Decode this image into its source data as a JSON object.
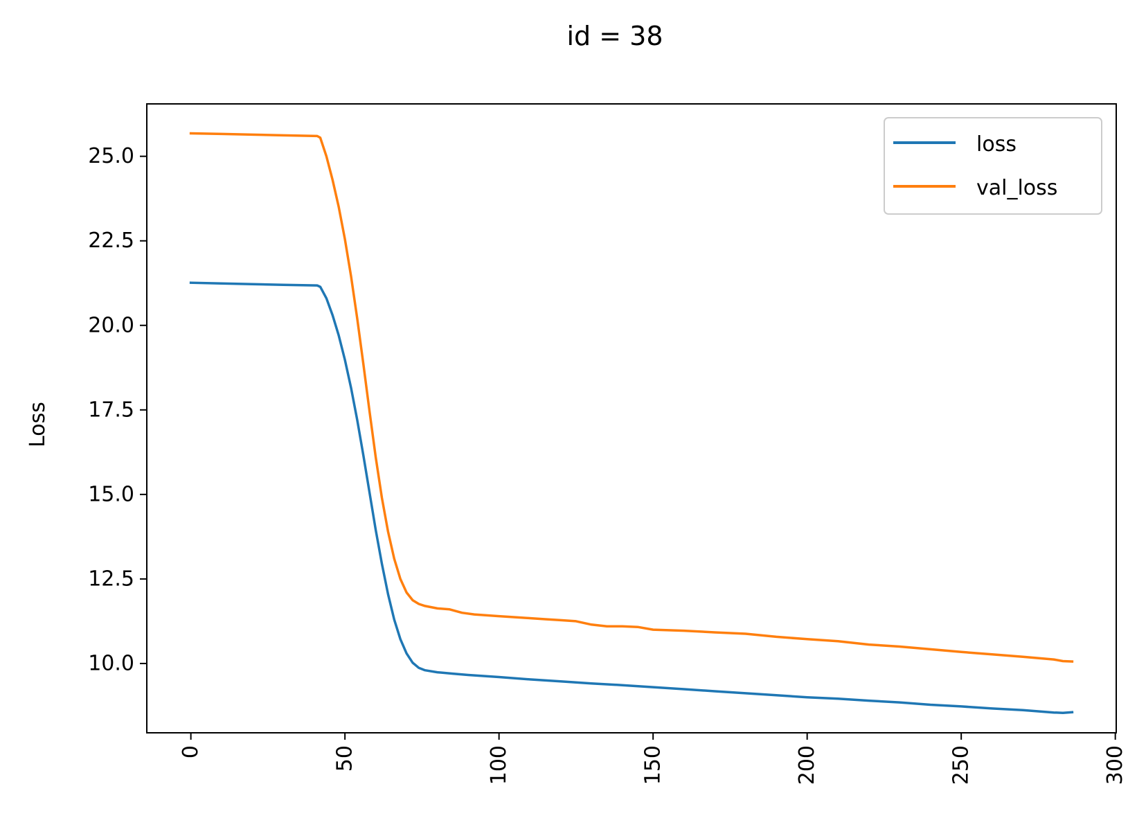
{
  "chart_data": {
    "type": "line",
    "title": "id = 38",
    "xlabel": "",
    "ylabel": "Loss",
    "xlim": [
      -14.3,
      300.3
    ],
    "ylim": [
      7.95,
      26.55
    ],
    "xticks": [
      0,
      50,
      100,
      150,
      200,
      250,
      300
    ],
    "xtick_labels": [
      "0",
      "50",
      "100",
      "150",
      "200",
      "250",
      "300"
    ],
    "yticks": [
      10.0,
      12.5,
      15.0,
      17.5,
      20.0,
      22.5,
      25.0
    ],
    "ytick_labels": [
      "10.0",
      "12.5",
      "15.0",
      "17.5",
      "20.0",
      "22.5",
      "25.0"
    ],
    "grid": false,
    "legend": "top-right",
    "series": [
      {
        "name": "loss",
        "color": "#1f77b4",
        "points": [
          [
            0,
            21.26
          ],
          [
            10,
            21.24
          ],
          [
            20,
            21.22
          ],
          [
            30,
            21.2
          ],
          [
            41,
            21.18
          ],
          [
            42,
            21.14
          ],
          [
            44,
            20.8
          ],
          [
            46,
            20.3
          ],
          [
            48,
            19.7
          ],
          [
            50,
            18.98
          ],
          [
            52,
            18.15
          ],
          [
            54,
            17.2
          ],
          [
            56,
            16.15
          ],
          [
            58,
            15.05
          ],
          [
            60,
            13.95
          ],
          [
            62,
            12.95
          ],
          [
            64,
            12.05
          ],
          [
            66,
            11.3
          ],
          [
            68,
            10.72
          ],
          [
            70,
            10.3
          ],
          [
            72,
            10.02
          ],
          [
            74,
            9.87
          ],
          [
            76,
            9.8
          ],
          [
            80,
            9.74
          ],
          [
            85,
            9.7
          ],
          [
            90,
            9.66
          ],
          [
            100,
            9.6
          ],
          [
            110,
            9.53
          ],
          [
            120,
            9.47
          ],
          [
            130,
            9.41
          ],
          [
            140,
            9.36
          ],
          [
            150,
            9.3
          ],
          [
            160,
            9.24
          ],
          [
            170,
            9.18
          ],
          [
            180,
            9.12
          ],
          [
            190,
            9.06
          ],
          [
            200,
            9.0
          ],
          [
            210,
            8.96
          ],
          [
            220,
            8.9
          ],
          [
            230,
            8.85
          ],
          [
            240,
            8.78
          ],
          [
            250,
            8.73
          ],
          [
            260,
            8.67
          ],
          [
            270,
            8.62
          ],
          [
            280,
            8.55
          ],
          [
            283,
            8.54
          ],
          [
            286,
            8.56
          ]
        ]
      },
      {
        "name": "val_loss",
        "color": "#ff7f0e",
        "points": [
          [
            0,
            25.68
          ],
          [
            10,
            25.66
          ],
          [
            20,
            25.64
          ],
          [
            30,
            25.62
          ],
          [
            41,
            25.6
          ],
          [
            42,
            25.55
          ],
          [
            44,
            25.0
          ],
          [
            46,
            24.3
          ],
          [
            48,
            23.5
          ],
          [
            50,
            22.55
          ],
          [
            52,
            21.45
          ],
          [
            54,
            20.2
          ],
          [
            56,
            18.85
          ],
          [
            58,
            17.45
          ],
          [
            60,
            16.1
          ],
          [
            62,
            14.9
          ],
          [
            64,
            13.9
          ],
          [
            66,
            13.1
          ],
          [
            68,
            12.5
          ],
          [
            70,
            12.1
          ],
          [
            72,
            11.87
          ],
          [
            74,
            11.76
          ],
          [
            76,
            11.7
          ],
          [
            80,
            11.63
          ],
          [
            84,
            11.6
          ],
          [
            88,
            11.5
          ],
          [
            92,
            11.45
          ],
          [
            100,
            11.4
          ],
          [
            110,
            11.34
          ],
          [
            115,
            11.31
          ],
          [
            120,
            11.28
          ],
          [
            125,
            11.25
          ],
          [
            130,
            11.15
          ],
          [
            135,
            11.1
          ],
          [
            140,
            11.1
          ],
          [
            145,
            11.08
          ],
          [
            150,
            11.0
          ],
          [
            160,
            10.97
          ],
          [
            170,
            10.92
          ],
          [
            180,
            10.88
          ],
          [
            190,
            10.79
          ],
          [
            200,
            10.72
          ],
          [
            210,
            10.66
          ],
          [
            220,
            10.56
          ],
          [
            230,
            10.5
          ],
          [
            240,
            10.42
          ],
          [
            250,
            10.34
          ],
          [
            260,
            10.27
          ],
          [
            270,
            10.2
          ],
          [
            280,
            10.12
          ],
          [
            283,
            10.07
          ],
          [
            286,
            10.06
          ]
        ]
      }
    ]
  }
}
